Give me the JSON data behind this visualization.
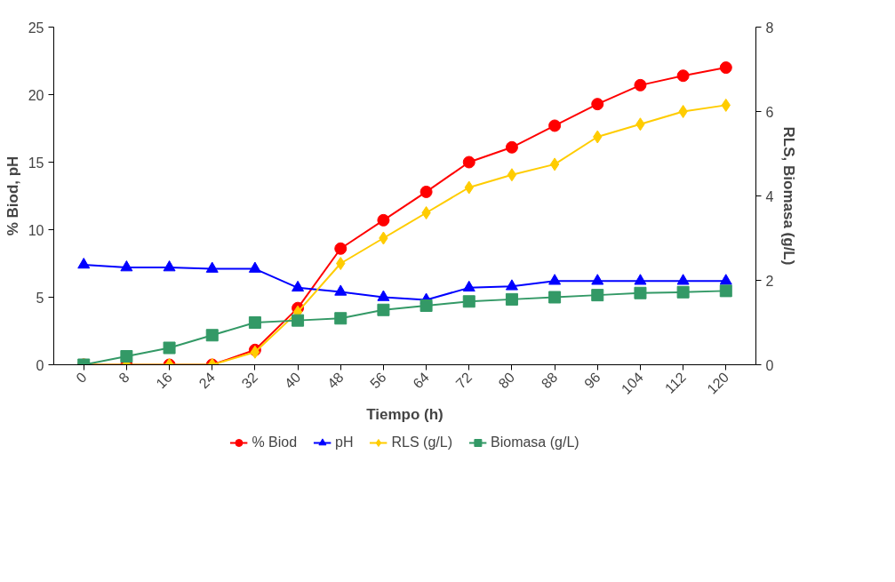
{
  "chart_data": {
    "type": "line",
    "xlabel": "Tiempo (h)",
    "ylabel": "% Biod, pH",
    "y2label": "RLS, Biomasa (g/L)",
    "categories": [
      "0",
      "8",
      "16",
      "24",
      "32",
      "40",
      "48",
      "56",
      "64",
      "72",
      "80",
      "88",
      "96",
      "104",
      "112",
      "120"
    ],
    "ylim": [
      0,
      25
    ],
    "yticks": [
      0,
      5,
      10,
      15,
      20,
      25
    ],
    "y2lim": [
      0,
      8
    ],
    "y2ticks": [
      0,
      2,
      4,
      6,
      8
    ],
    "grid": false,
    "legend": "bottom",
    "series": [
      {
        "name": "% Biod",
        "color": "#ff0000",
        "marker": "circle",
        "values": [
          0,
          0,
          0,
          0,
          1.1,
          4.2,
          8.6,
          10.7,
          12.8,
          15.0,
          16.1,
          17.7,
          19.3,
          20.7,
          21.4,
          22.0
        ]
      },
      {
        "name": "pH",
        "color": "#0000ff",
        "marker": "triangle",
        "values": [
          7.4,
          7.2,
          7.2,
          7.1,
          7.1,
          5.7,
          5.4,
          5.0,
          4.8,
          5.7,
          5.8,
          6.2,
          6.2,
          6.2,
          6.2,
          6.2
        ]
      },
      {
        "name": "RLS (g/L)",
        "color": "#ffcc00",
        "marker": "diamond",
        "axis": "y2",
        "values": [
          0,
          0,
          0,
          0,
          0.3,
          1.25,
          2.4,
          3.0,
          3.6,
          4.2,
          4.5,
          4.75,
          5.4,
          5.7,
          6.0,
          6.15
        ]
      },
      {
        "name": "Biomasa (g/L)",
        "color": "#339966",
        "marker": "square",
        "axis": "y2",
        "values": [
          0,
          0.2,
          0.4,
          0.7,
          1.0,
          1.05,
          1.1,
          1.3,
          1.4,
          1.5,
          1.55,
          1.6,
          1.65,
          1.7,
          1.72,
          1.75
        ]
      }
    ]
  }
}
